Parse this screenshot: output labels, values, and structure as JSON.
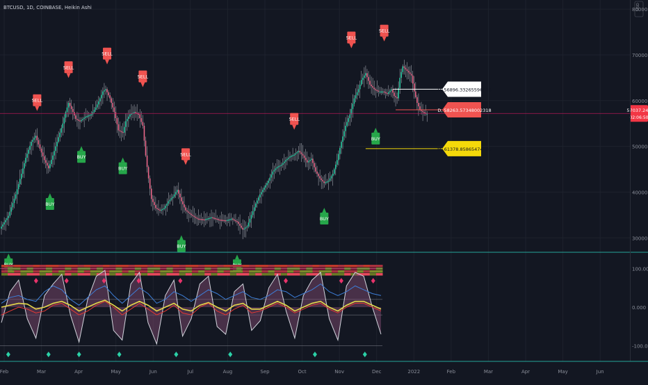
{
  "header": {
    "symbol_line": "BTCUSD, 1D, COINBASE, Heikin Ashi",
    "currency": "USD",
    "top_right_icon": "settings-icon"
  },
  "colors": {
    "background": "#131722",
    "grid": "#1e222d",
    "bull": "#2bd1a7",
    "bear": "#f06a8c",
    "wick": "#d1d4dc",
    "sell": "#f05350",
    "buy": "#26a64a",
    "price_line": "#c2185b",
    "accent_line": "#26a69a"
  },
  "chart_data": [
    {
      "type": "candlestick",
      "title": "BTCUSD, 1D, COINBASE, Heikin Ashi",
      "y_axis": {
        "ticks": [
          "80000.000",
          "70000.000",
          "60000.000",
          "50000.000",
          "40000.000",
          "30000.000"
        ],
        "ylim": [
          27000,
          82000
        ],
        "position": "right"
      },
      "x_axis": {
        "ticks": [
          "Feb",
          "Mar",
          "Apr",
          "May",
          "Jun",
          "Jul",
          "Aug",
          "Sep",
          "Oct",
          "Nov",
          "Dec",
          "2022",
          "Feb",
          "Mar",
          "Apr",
          "May",
          "Jun"
        ]
      },
      "price_path": [
        [
          0,
          32000
        ],
        [
          6,
          34800
        ],
        [
          11,
          39500
        ],
        [
          15,
          44000
        ],
        [
          18,
          47500
        ],
        [
          22,
          51000
        ],
        [
          25,
          52300
        ],
        [
          28,
          49500
        ],
        [
          31,
          47000
        ],
        [
          34,
          45200
        ],
        [
          37,
          48000
        ],
        [
          41,
          52000
        ],
        [
          44,
          55000
        ],
        [
          46,
          57500
        ],
        [
          48,
          59500
        ],
        [
          51,
          57500
        ],
        [
          53,
          56000
        ],
        [
          56,
          55500
        ],
        [
          60,
          56500
        ],
        [
          64,
          57000
        ],
        [
          67,
          58500
        ],
        [
          70,
          60500
        ],
        [
          72,
          62000
        ],
        [
          74,
          62500
        ],
        [
          77,
          60500
        ],
        [
          80,
          57500
        ],
        [
          83,
          53500
        ],
        [
          86,
          53000
        ],
        [
          88,
          55500
        ],
        [
          91,
          57000
        ],
        [
          94,
          57500
        ],
        [
          97,
          57000
        ],
        [
          100,
          54500
        ],
        [
          102,
          48000
        ],
        [
          104,
          43000
        ],
        [
          106,
          38500
        ],
        [
          109,
          36500
        ],
        [
          112,
          36000
        ],
        [
          115,
          36500
        ],
        [
          118,
          38000
        ],
        [
          121,
          39000
        ],
        [
          124,
          40500
        ],
        [
          127,
          38000
        ],
        [
          130,
          36000
        ],
        [
          134,
          35000
        ],
        [
          138,
          34200
        ],
        [
          143,
          34000
        ],
        [
          148,
          34500
        ],
        [
          153,
          34000
        ],
        [
          158,
          33800
        ],
        [
          162,
          34200
        ],
        [
          166,
          33500
        ],
        [
          170,
          31800
        ],
        [
          173,
          32500
        ],
        [
          176,
          35000
        ],
        [
          179,
          37500
        ],
        [
          182,
          39500
        ],
        [
          185,
          41000
        ],
        [
          188,
          42500
        ],
        [
          191,
          44500
        ],
        [
          194,
          45500
        ],
        [
          197,
          46000
        ],
        [
          200,
          47000
        ],
        [
          203,
          47800
        ],
        [
          206,
          48200
        ],
        [
          209,
          49000
        ],
        [
          212,
          48000
        ],
        [
          215,
          46500
        ],
        [
          218,
          47300
        ],
        [
          221,
          44500
        ],
        [
          224,
          43000
        ],
        [
          227,
          42000
        ],
        [
          230,
          42500
        ],
        [
          233,
          44000
        ],
        [
          236,
          47000
        ],
        [
          239,
          51000
        ],
        [
          242,
          54500
        ],
        [
          245,
          57000
        ],
        [
          248,
          60500
        ],
        [
          251,
          62500
        ],
        [
          253,
          64500
        ],
        [
          256,
          66000
        ],
        [
          259,
          63500
        ],
        [
          262,
          62500
        ],
        [
          265,
          62000
        ],
        [
          268,
          62000
        ],
        [
          271,
          61500
        ],
        [
          274,
          62500
        ],
        [
          276,
          61000
        ],
        [
          278,
          60500
        ],
        [
          280,
          65000
        ],
        [
          282,
          67500
        ],
        [
          285,
          66500
        ],
        [
          288,
          65500
        ],
        [
          290,
          62000
        ],
        [
          292,
          59500
        ],
        [
          294,
          58000
        ],
        [
          296,
          57500
        ],
        [
          298,
          57200
        ]
      ],
      "bar_count": 299,
      "day_range": [
        0,
        440
      ],
      "current_price": 57200,
      "price_label": "57037.240",
      "price_countdown": "02:06:50",
      "markers": [
        {
          "label": "SELL",
          "day": 25,
          "price": 52300
        },
        {
          "label": "SELL",
          "day": 47,
          "price": 59500
        },
        {
          "label": "SELL",
          "day": 74,
          "price": 62500
        },
        {
          "label": "SELL",
          "day": 99,
          "price": 57500
        },
        {
          "label": "SELL",
          "day": 129,
          "price": 40500
        },
        {
          "label": "SELL",
          "day": 205,
          "price": 48200
        },
        {
          "label": "SELL",
          "day": 245,
          "price": 66000
        },
        {
          "label": "SELL",
          "day": 268,
          "price": 67500
        },
        {
          "label": "BUY",
          "day": 5,
          "price": 32000
        },
        {
          "label": "BUY",
          "day": 34,
          "price": 45200
        },
        {
          "label": "BUY",
          "day": 56,
          "price": 55500
        },
        {
          "label": "BUY",
          "day": 85,
          "price": 53000
        },
        {
          "label": "BUY",
          "day": 126,
          "price": 36000
        },
        {
          "label": "BUY",
          "day": 165,
          "price": 31800
        },
        {
          "label": "BUY",
          "day": 226,
          "price": 42000
        },
        {
          "label": "BUY",
          "day": 262,
          "price": 59500
        }
      ],
      "level_lines": [
        {
          "label": "H, 56896.33265596636",
          "price": 62500,
          "from_day": 274,
          "box": "white"
        },
        {
          "label": "D, 58263.57348002318",
          "price": 58000,
          "from_day": 276,
          "box": "red"
        },
        {
          "label": "M, 61378.85865474105",
          "price": 49500,
          "from_day": 255,
          "box": "yellow"
        }
      ]
    },
    {
      "type": "line",
      "title": "",
      "y_axis": {
        "ticks": [
          "100.000",
          "0.000",
          "-100.000"
        ],
        "ylim": [
          -140,
          140
        ]
      },
      "bands": [
        "#c0392b",
        "#8b1538",
        "#7a8b2a",
        "#e8485c"
      ],
      "series": [
        {
          "color": "#d1d4dc",
          "values": [
            -40,
            40,
            70,
            -30,
            -80,
            30,
            60,
            85,
            -20,
            -90,
            20,
            80,
            95,
            -60,
            -85,
            60,
            90,
            -40,
            -95,
            30,
            70,
            -75,
            -30,
            60,
            80,
            -50,
            -70,
            40,
            60,
            -60,
            -35,
            50,
            85,
            -10,
            -80,
            30,
            70,
            90,
            -30,
            -85,
            55,
            90,
            80,
            0,
            -70
          ]
        },
        {
          "color": "#3d7ed8",
          "values": [
            10,
            25,
            30,
            20,
            15,
            40,
            55,
            45,
            20,
            5,
            25,
            45,
            55,
            30,
            10,
            30,
            50,
            35,
            10,
            20,
            40,
            30,
            15,
            30,
            45,
            35,
            20,
            30,
            40,
            25,
            20,
            30,
            45,
            40,
            25,
            35,
            45,
            60,
            40,
            30,
            40,
            55,
            45,
            35,
            30
          ]
        },
        {
          "color": "#e6d84a",
          "values": [
            0,
            5,
            10,
            8,
            -5,
            0,
            10,
            15,
            5,
            -10,
            0,
            10,
            18,
            5,
            -10,
            5,
            15,
            5,
            -10,
            0,
            10,
            -5,
            -10,
            5,
            12,
            0,
            -10,
            5,
            10,
            -5,
            -5,
            5,
            15,
            5,
            -10,
            0,
            10,
            15,
            0,
            -10,
            5,
            15,
            15,
            5,
            -5
          ]
        },
        {
          "color": "#e53935",
          "values": [
            -20,
            -10,
            0,
            -5,
            -15,
            -10,
            5,
            10,
            -5,
            -20,
            -10,
            5,
            15,
            0,
            -20,
            -5,
            10,
            -5,
            -20,
            -10,
            5,
            -15,
            -20,
            0,
            10,
            -10,
            -20,
            -5,
            5,
            -15,
            -10,
            0,
            10,
            0,
            -15,
            -5,
            5,
            10,
            -5,
            -15,
            0,
            10,
            10,
            0,
            -10
          ]
        }
      ],
      "x": {
        "count": 45
      }
    }
  ]
}
